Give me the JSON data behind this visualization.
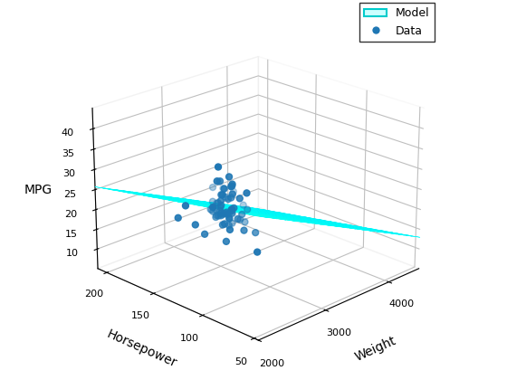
{
  "title": "",
  "xlabel": "Weight",
  "ylabel": "Horsepower",
  "zlabel": "MPG",
  "scatter_data": [
    [
      1613,
      88,
      35
    ],
    [
      1649,
      98,
      31
    ],
    [
      1700,
      68,
      36
    ],
    [
      1800,
      92,
      29
    ],
    [
      1835,
      72,
      44
    ],
    [
      1925,
      68,
      32
    ],
    [
      1985,
      46,
      26
    ],
    [
      2000,
      97,
      25
    ],
    [
      2035,
      75,
      28
    ],
    [
      2050,
      88,
      38
    ],
    [
      2100,
      83,
      24
    ],
    [
      2110,
      78,
      32
    ],
    [
      2120,
      86,
      36
    ],
    [
      2130,
      80,
      37
    ],
    [
      2155,
      90,
      34
    ],
    [
      2200,
      70,
      36
    ],
    [
      2220,
      88,
      38
    ],
    [
      2230,
      86,
      36
    ],
    [
      2255,
      95,
      26
    ],
    [
      2265,
      88,
      36
    ],
    [
      2300,
      100,
      25
    ],
    [
      2350,
      105,
      30
    ],
    [
      2370,
      88,
      32
    ],
    [
      2385,
      107,
      31
    ],
    [
      2400,
      97,
      32
    ],
    [
      2420,
      110,
      26
    ],
    [
      2430,
      88,
      24
    ],
    [
      2464,
      100,
      28
    ],
    [
      2500,
      115,
      27
    ],
    [
      2520,
      100,
      25
    ],
    [
      2560,
      120,
      32
    ],
    [
      2587,
      110,
      25
    ],
    [
      2600,
      125,
      26
    ],
    [
      2625,
      113,
      25
    ],
    [
      2650,
      115,
      25
    ],
    [
      2700,
      130,
      23
    ],
    [
      2720,
      120,
      27
    ],
    [
      2750,
      125,
      26
    ],
    [
      2780,
      100,
      20
    ],
    [
      2800,
      130,
      22
    ],
    [
      2822,
      140,
      20
    ],
    [
      2850,
      135,
      21
    ],
    [
      2900,
      140,
      20
    ],
    [
      2930,
      150,
      18
    ],
    [
      2950,
      138,
      17
    ],
    [
      3000,
      150,
      20
    ],
    [
      3030,
      130,
      20
    ],
    [
      3073,
      148,
      18
    ],
    [
      3100,
      155,
      17
    ],
    [
      3150,
      160,
      16
    ],
    [
      3200,
      168,
      15
    ],
    [
      3250,
      175,
      15
    ],
    [
      3300,
      150,
      15
    ],
    [
      3380,
      180,
      14
    ],
    [
      3400,
      165,
      12
    ],
    [
      3430,
      190,
      13
    ],
    [
      3449,
      155,
      13
    ],
    [
      3500,
      175,
      13
    ],
    [
      3525,
      190,
      14
    ],
    [
      3563,
      160,
      15
    ],
    [
      3609,
      200,
      13
    ],
    [
      3700,
      190,
      10
    ],
    [
      3735,
      210,
      9
    ],
    [
      3800,
      200,
      13
    ],
    [
      3830,
      215,
      14
    ],
    [
      4000,
      220,
      14
    ],
    [
      4054,
      215,
      10
    ],
    [
      4100,
      200,
      9
    ],
    [
      4215,
      230,
      10
    ],
    [
      4312,
      225,
      9
    ]
  ],
  "weight_model_range": [
    2000,
    4500
  ],
  "hp_model_range": [
    46,
    210
  ],
  "surface_colormap": "viridis",
  "figsize": [
    5.6,
    4.2
  ],
  "dpi": 100,
  "azim": 225,
  "elev": 22,
  "legend_surface_facecolor": "#ccffff",
  "legend_surface_edgecolor": "#00cccc",
  "scatter_color": "#1f77b4",
  "scatter_size": 25,
  "xlim": [
    2000,
    4500
  ],
  "ylim": [
    46,
    210
  ],
  "zlim": [
    5,
    45
  ],
  "xticks": [
    2000,
    3000,
    4000
  ],
  "yticks": [
    50,
    100,
    150,
    200
  ],
  "zticks": [
    10,
    15,
    20,
    25,
    30,
    35,
    40
  ]
}
